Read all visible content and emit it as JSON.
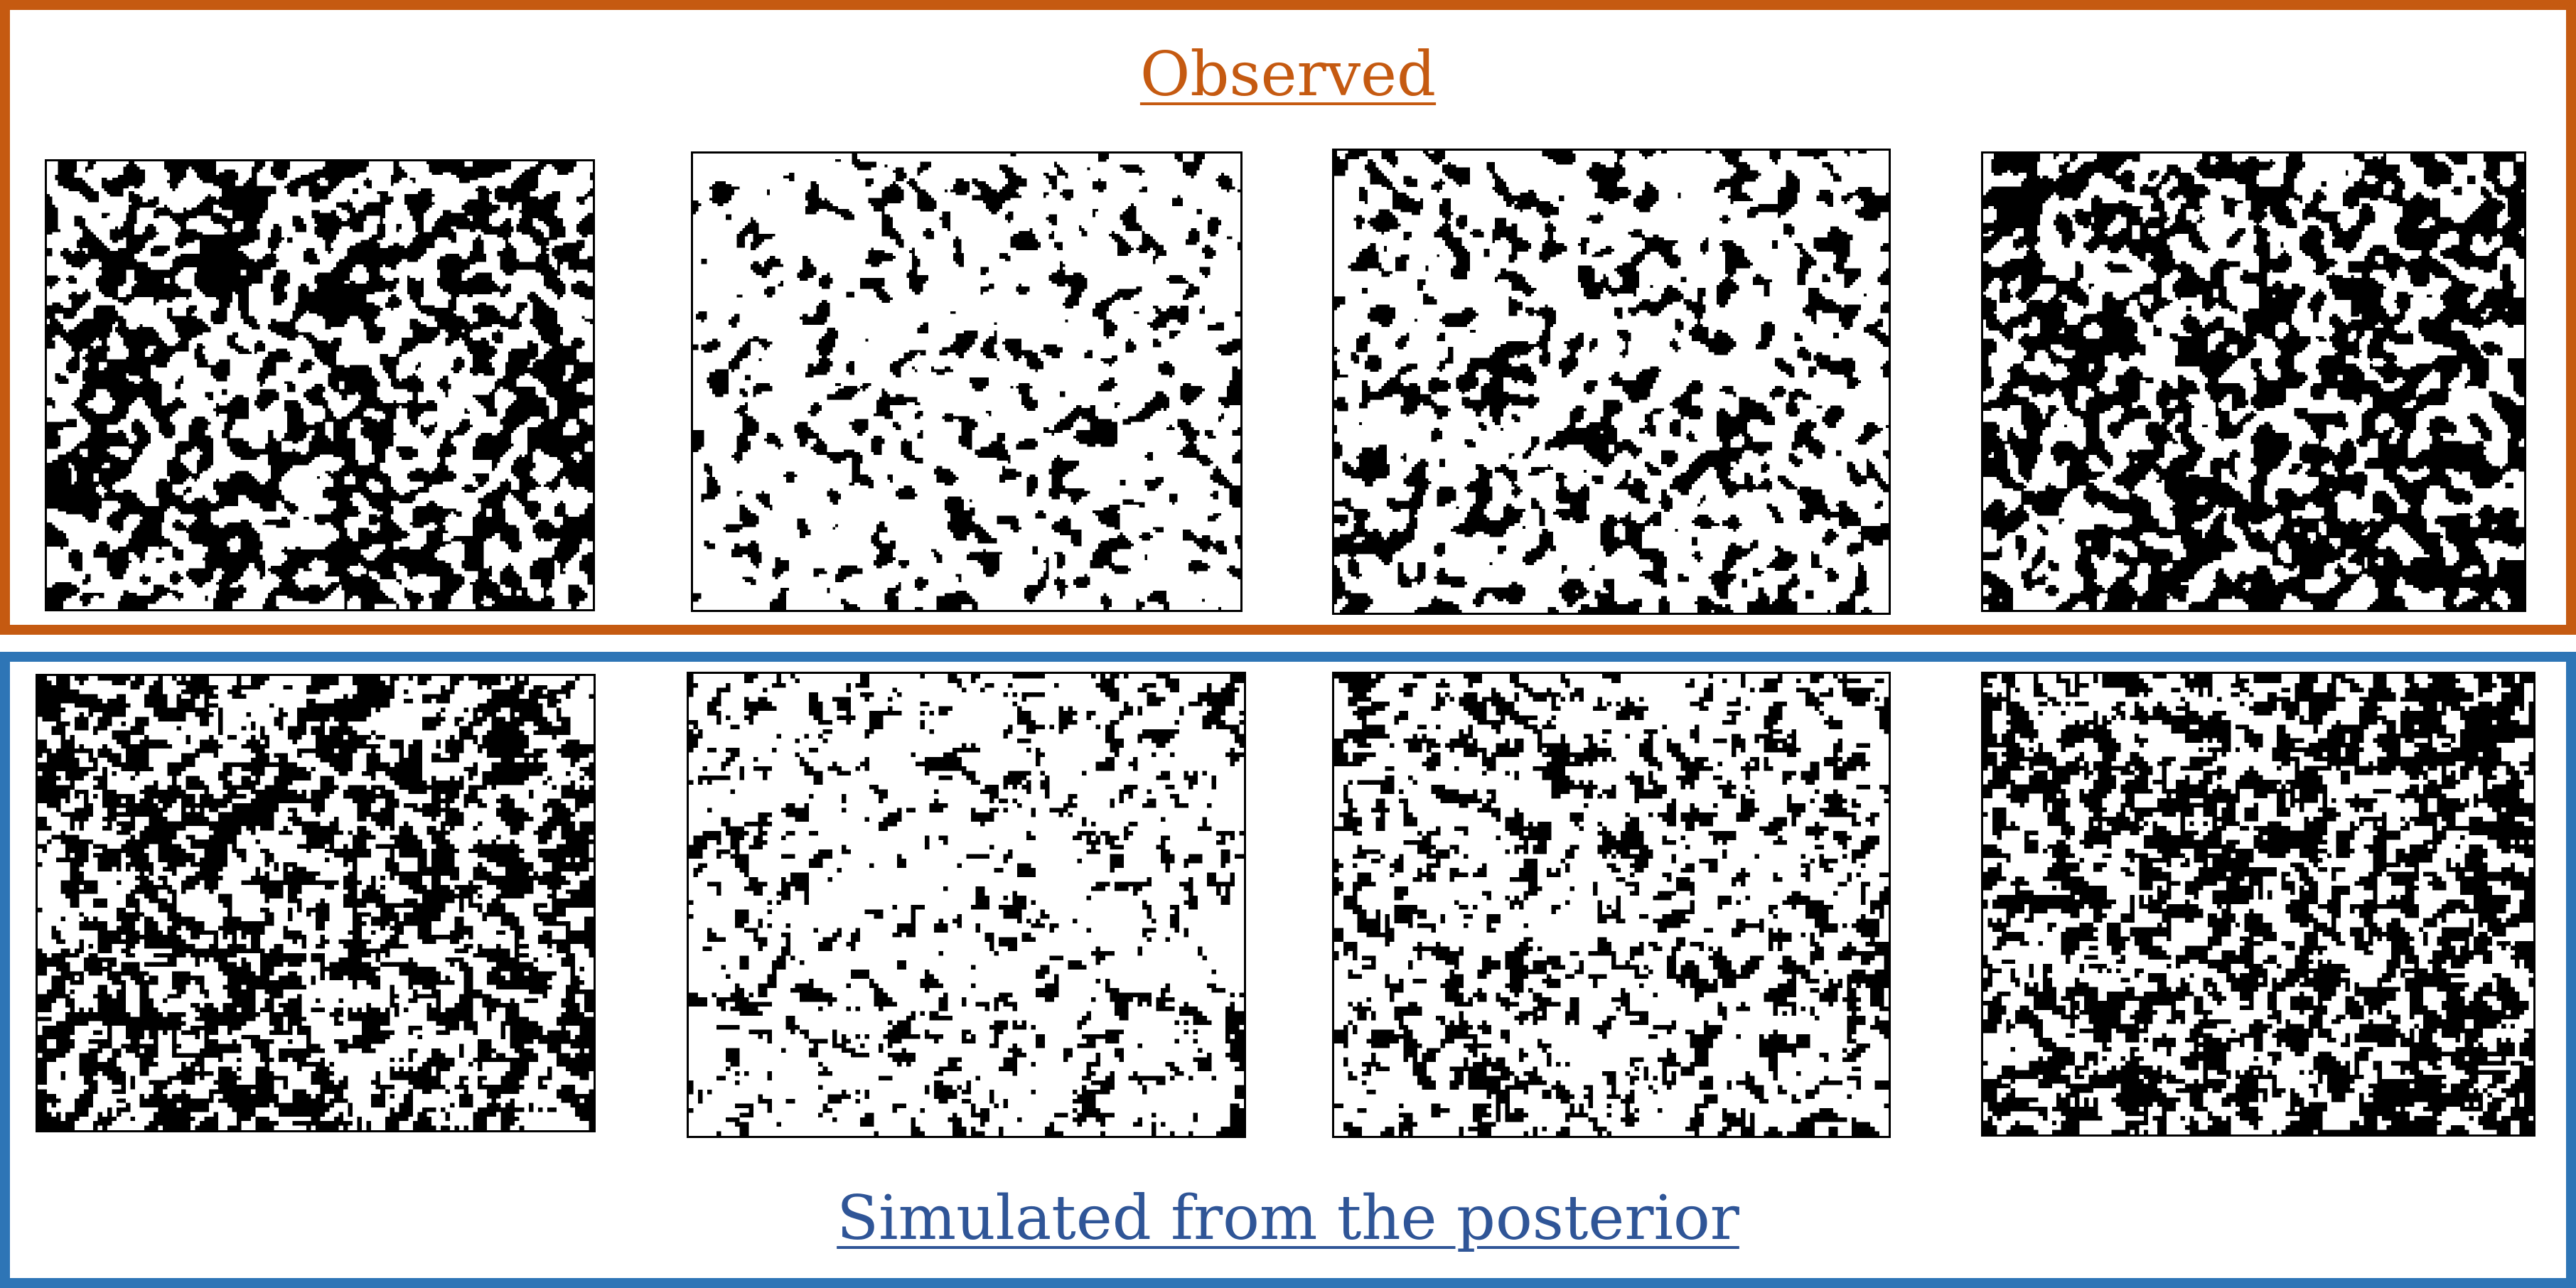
{
  "observed": {
    "title": "Observed",
    "title_color": "#c55a11",
    "border_color": "#c55a11",
    "fields": [
      {
        "label": "observed field 1",
        "black_fraction": 0.5,
        "texture": "smooth blobs"
      },
      {
        "label": "observed field 2",
        "black_fraction": 0.18,
        "texture": "sparse smooth blobs"
      },
      {
        "label": "observed field 3",
        "black_fraction": 0.28,
        "texture": "smooth blobs"
      },
      {
        "label": "observed field 4",
        "black_fraction": 0.55,
        "texture": "smooth blobs"
      }
    ]
  },
  "simulated": {
    "title": "Simulated from the posterior",
    "title_color": "#2f5597",
    "border_color": "#2e75b6",
    "fields": [
      {
        "label": "simulated field 1",
        "black_fraction": 0.5,
        "texture": "grainy pixelated"
      },
      {
        "label": "simulated field 2",
        "black_fraction": 0.18,
        "texture": "sparse grainy pixelated"
      },
      {
        "label": "simulated field 3",
        "black_fraction": 0.28,
        "texture": "grainy pixelated"
      },
      {
        "label": "simulated field 4",
        "black_fraction": 0.52,
        "texture": "grainy pixelated"
      }
    ]
  }
}
